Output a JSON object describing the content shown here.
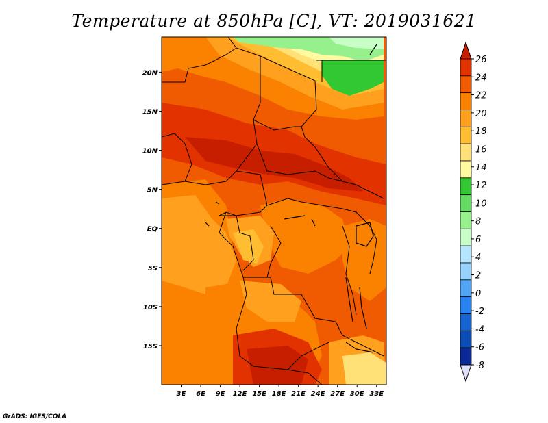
{
  "title": "Temperature at 850hPa [C], VT: 2019031621",
  "credit": "GrADS: IGES/COLA",
  "map": {
    "lat_ticks": [
      "20N",
      "15N",
      "10N",
      "5N",
      "EQ",
      "5S",
      "10S",
      "15S"
    ],
    "lat_values": [
      20,
      15,
      10,
      5,
      0,
      -5,
      -10,
      -15
    ],
    "lon_ticks": [
      "3E",
      "6E",
      "9E",
      "12E",
      "15E",
      "18E",
      "21E",
      "24E",
      "27E",
      "30E",
      "33E"
    ],
    "lon_values": [
      3,
      6,
      9,
      12,
      15,
      18,
      21,
      24,
      27,
      30,
      33
    ],
    "lat_range": [
      -20,
      24.5
    ],
    "lon_range": [
      0,
      34.5
    ]
  },
  "colorbar": {
    "labels": [
      "26",
      "24",
      "22",
      "20",
      "18",
      "16",
      "14",
      "12",
      "10",
      "8",
      "6",
      "4",
      "2",
      "0",
      "-2",
      "-4",
      "-6",
      "-8"
    ],
    "colors": [
      "#c81e00",
      "#e13200",
      "#f05a00",
      "#fa8200",
      "#ffa01e",
      "#ffbe32",
      "#ffe178",
      "#fffaa0",
      "#32c832",
      "#64dc64",
      "#96f08c",
      "#c8ffc8",
      "#b4e6ff",
      "#96d2fa",
      "#50a5f5",
      "#2882f0",
      "#1464d2",
      "#0a4bb4",
      "#0a2896",
      "#00006e"
    ],
    "over_color": "#c81e00",
    "under_color": "#e1e1ff"
  }
}
